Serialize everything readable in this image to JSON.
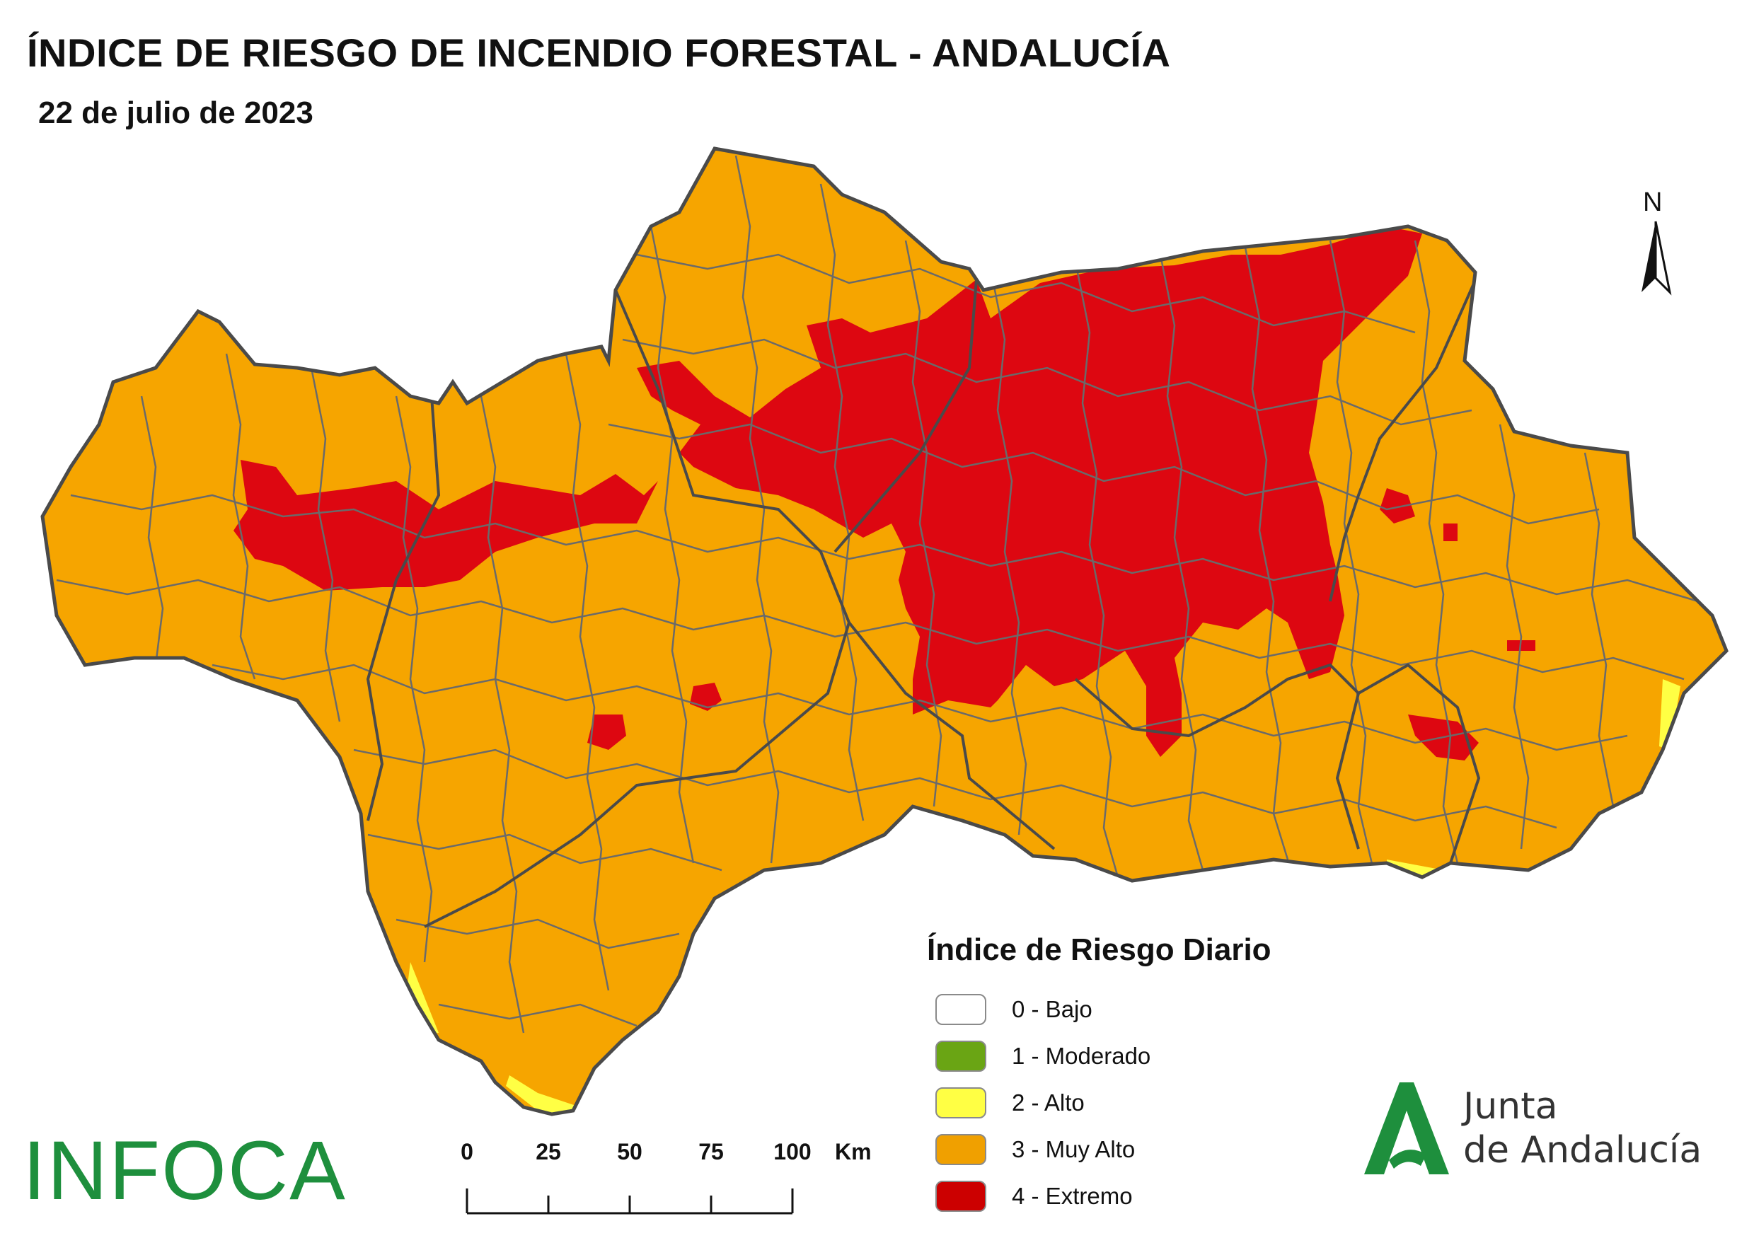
{
  "title": "ÍNDICE DE RIESGO DE INCENDIO FORESTAL - ANDALUCÍA",
  "subtitle": "22 de julio de 2023",
  "north": {
    "label": "N"
  },
  "legend": {
    "title": "Índice de Riesgo Diario",
    "items": [
      {
        "label": "0 - Bajo",
        "color": "#ffffff"
      },
      {
        "label": "1 - Moderado",
        "color": "#6aa514"
      },
      {
        "label": "2 - Alto",
        "color": "#ffff44"
      },
      {
        "label": "3 - Muy Alto",
        "color": "#f0a000"
      },
      {
        "label": "4 - Extremo",
        "color": "#cc0000"
      }
    ]
  },
  "scale": {
    "ticks": [
      "0",
      "25",
      "50",
      "75",
      "100"
    ],
    "unit": "Km"
  },
  "logos": {
    "infoca": "INFOCA",
    "junta_line1": "Junta",
    "junta_line2": "de Andalucía"
  },
  "colors": {
    "risk_very_high": "#f6a500",
    "risk_extreme": "#dd0711",
    "risk_high": "#ffff44",
    "boundary": "#555555",
    "logo_green": "#1e8f3d"
  }
}
